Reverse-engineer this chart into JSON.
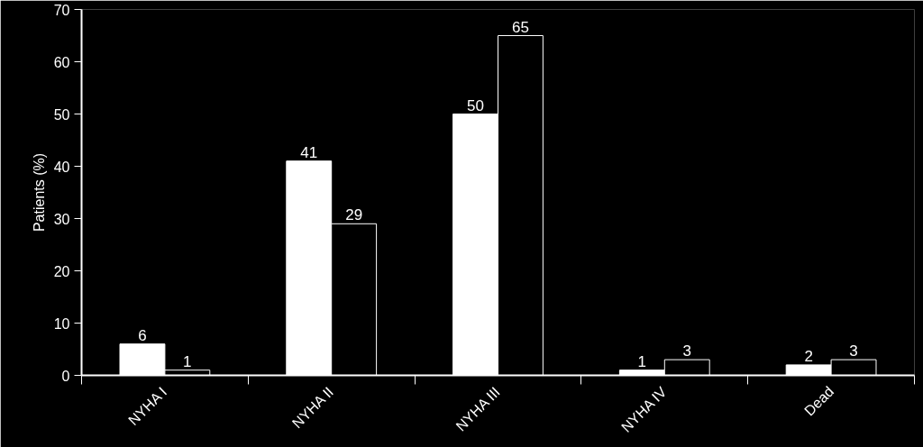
{
  "chart_data": {
    "type": "bar",
    "ylabel": "Patients (%)",
    "categories": [
      "NYHA I",
      "NYHA II",
      "NYHA III",
      "NYHA IV",
      "Dead"
    ],
    "series": [
      {
        "color": "#ffffff",
        "values": [
          6,
          41,
          50,
          1,
          2
        ]
      },
      {
        "color": "#000000",
        "values": [
          1,
          29,
          65,
          3,
          3
        ]
      }
    ],
    "ylim": [
      0,
      70
    ],
    "yticks": [
      0,
      10,
      20,
      30,
      40,
      50,
      60,
      70
    ],
    "data_labels": true
  }
}
